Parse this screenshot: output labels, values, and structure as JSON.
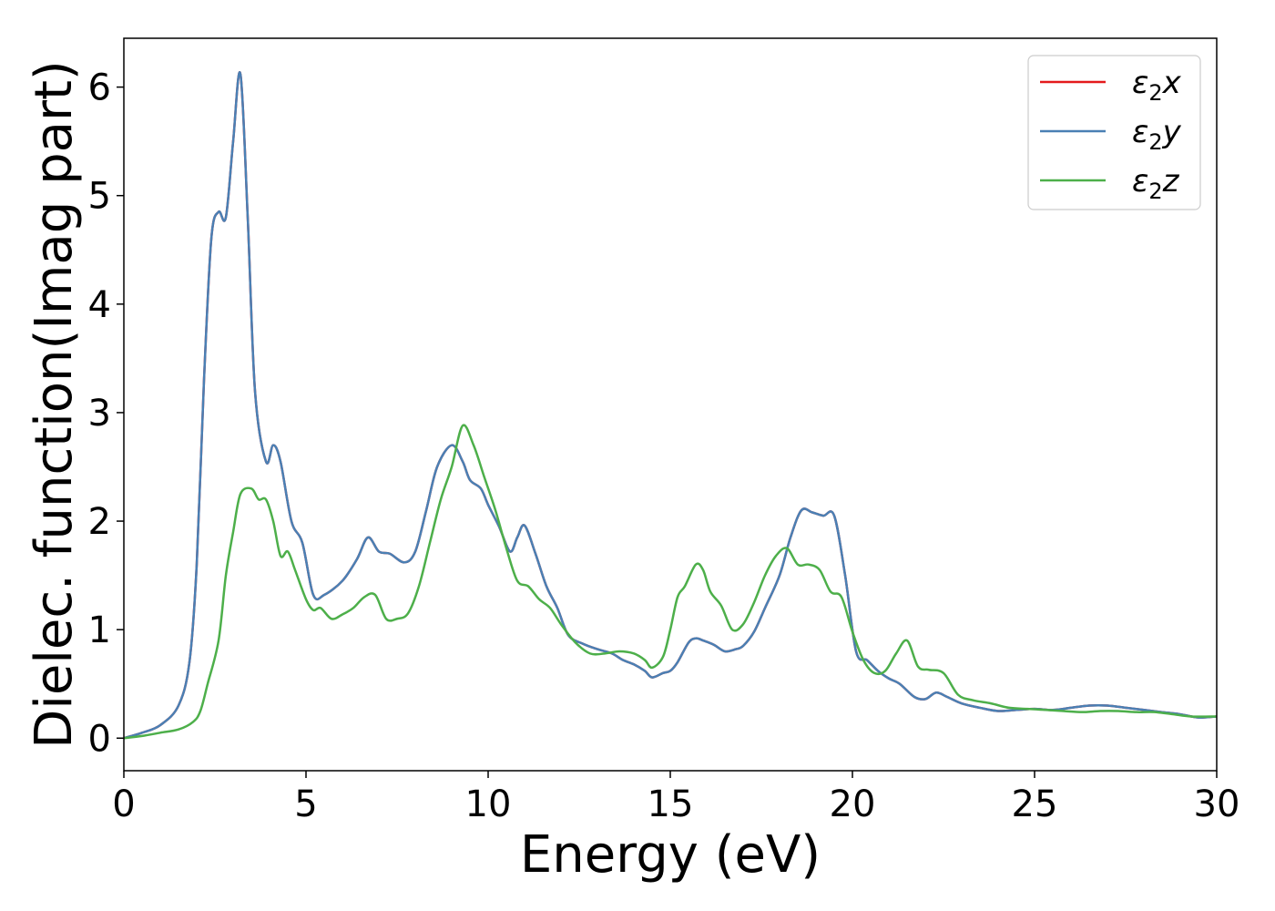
{
  "chart_data": {
    "type": "line",
    "title": "",
    "xlabel": "Energy (eV)",
    "ylabel": "Dielec. function(Imag part)",
    "xlim": [
      0,
      30
    ],
    "ylim": [
      -0.3,
      6.45
    ],
    "xticks": [
      0,
      5,
      10,
      15,
      20,
      25,
      30
    ],
    "yticks": [
      0,
      1,
      2,
      3,
      4,
      5,
      6
    ],
    "grid": false,
    "legend_position": "top-right",
    "series": [
      {
        "name": "ε₂x",
        "legend_base": "ε",
        "legend_sub": "2",
        "legend_var": "x",
        "color": "#e41a1c",
        "x": [
          0,
          0.5,
          1,
          1.5,
          1.8,
          2,
          2.2,
          2.4,
          2.6,
          2.8,
          3,
          3.2,
          3.4,
          3.6,
          3.9,
          4.1,
          4.3,
          4.6,
          4.9,
          5.2,
          5.5,
          6,
          6.4,
          6.7,
          7,
          7.3,
          7.7,
          8,
          8.3,
          8.6,
          9,
          9.3,
          9.5,
          9.8,
          10,
          10.3,
          10.6,
          10.8,
          11,
          11.3,
          11.6,
          11.9,
          12.2,
          12.6,
          13,
          13.4,
          13.7,
          14,
          14.3,
          14.5,
          14.8,
          15,
          15.2,
          15.5,
          15.7,
          15.9,
          16.2,
          16.5,
          16.8,
          17,
          17.3,
          17.6,
          18,
          18.3,
          18.6,
          18.9,
          19.2,
          19.5,
          19.8,
          20.1,
          20.4,
          20.7,
          21,
          21.3,
          21.7,
          22,
          22.3,
          22.6,
          23,
          23.5,
          24,
          24.5,
          25,
          25.5,
          26,
          26.5,
          27,
          27.5,
          28,
          28.5,
          29,
          29.5,
          30
        ],
        "y": [
          0,
          0.05,
          0.12,
          0.3,
          0.7,
          1.6,
          3.3,
          4.6,
          4.85,
          4.8,
          5.5,
          6.12,
          4.8,
          3.2,
          2.55,
          2.7,
          2.55,
          2.0,
          1.8,
          1.32,
          1.32,
          1.45,
          1.65,
          1.85,
          1.72,
          1.7,
          1.62,
          1.72,
          2.1,
          2.5,
          2.7,
          2.55,
          2.38,
          2.3,
          2.15,
          1.95,
          1.72,
          1.85,
          1.96,
          1.7,
          1.4,
          1.2,
          0.95,
          0.87,
          0.82,
          0.78,
          0.72,
          0.68,
          0.62,
          0.56,
          0.6,
          0.62,
          0.7,
          0.88,
          0.92,
          0.9,
          0.86,
          0.8,
          0.82,
          0.85,
          0.98,
          1.2,
          1.5,
          1.85,
          2.1,
          2.08,
          2.05,
          2.05,
          1.5,
          0.8,
          0.72,
          0.62,
          0.55,
          0.5,
          0.38,
          0.36,
          0.42,
          0.38,
          0.32,
          0.28,
          0.25,
          0.26,
          0.27,
          0.26,
          0.28,
          0.3,
          0.3,
          0.28,
          0.26,
          0.24,
          0.22,
          0.19,
          0.2
        ]
      },
      {
        "name": "ε₂y",
        "legend_base": "ε",
        "legend_sub": "2",
        "legend_var": "y",
        "color": "#4a80b4",
        "x": [
          0,
          0.5,
          1,
          1.5,
          1.8,
          2,
          2.2,
          2.4,
          2.6,
          2.8,
          3,
          3.2,
          3.4,
          3.6,
          3.9,
          4.1,
          4.3,
          4.6,
          4.9,
          5.2,
          5.5,
          6,
          6.4,
          6.7,
          7,
          7.3,
          7.7,
          8,
          8.3,
          8.6,
          9,
          9.3,
          9.5,
          9.8,
          10,
          10.3,
          10.6,
          10.8,
          11,
          11.3,
          11.6,
          11.9,
          12.2,
          12.6,
          13,
          13.4,
          13.7,
          14,
          14.3,
          14.5,
          14.8,
          15,
          15.2,
          15.5,
          15.7,
          15.9,
          16.2,
          16.5,
          16.8,
          17,
          17.3,
          17.6,
          18,
          18.3,
          18.6,
          18.9,
          19.2,
          19.5,
          19.8,
          20.1,
          20.4,
          20.7,
          21,
          21.3,
          21.7,
          22,
          22.3,
          22.6,
          23,
          23.5,
          24,
          24.5,
          25,
          25.5,
          26,
          26.5,
          27,
          27.5,
          28,
          28.5,
          29,
          29.5,
          30
        ],
        "y": [
          0,
          0.05,
          0.12,
          0.3,
          0.7,
          1.6,
          3.3,
          4.6,
          4.85,
          4.8,
          5.5,
          6.12,
          4.8,
          3.2,
          2.55,
          2.7,
          2.55,
          2.0,
          1.8,
          1.32,
          1.32,
          1.45,
          1.65,
          1.85,
          1.72,
          1.7,
          1.62,
          1.72,
          2.1,
          2.5,
          2.7,
          2.55,
          2.38,
          2.3,
          2.15,
          1.95,
          1.72,
          1.85,
          1.96,
          1.7,
          1.4,
          1.2,
          0.95,
          0.87,
          0.82,
          0.78,
          0.72,
          0.68,
          0.62,
          0.56,
          0.6,
          0.62,
          0.7,
          0.88,
          0.92,
          0.9,
          0.86,
          0.8,
          0.82,
          0.85,
          0.98,
          1.2,
          1.5,
          1.85,
          2.1,
          2.08,
          2.05,
          2.05,
          1.5,
          0.8,
          0.72,
          0.62,
          0.55,
          0.5,
          0.38,
          0.36,
          0.42,
          0.38,
          0.32,
          0.28,
          0.25,
          0.26,
          0.27,
          0.26,
          0.28,
          0.3,
          0.3,
          0.28,
          0.26,
          0.24,
          0.22,
          0.19,
          0.2
        ]
      },
      {
        "name": "ε₂z",
        "legend_base": "ε",
        "legend_sub": "2",
        "legend_var": "z",
        "color": "#4daf4a",
        "x": [
          0,
          0.5,
          1,
          1.5,
          1.9,
          2.1,
          2.3,
          2.6,
          2.8,
          3,
          3.2,
          3.5,
          3.7,
          3.9,
          4.1,
          4.3,
          4.5,
          4.7,
          5,
          5.2,
          5.4,
          5.7,
          6,
          6.3,
          6.6,
          6.9,
          7.2,
          7.5,
          7.8,
          8.1,
          8.4,
          8.7,
          9,
          9.3,
          9.6,
          9.9,
          10.2,
          10.5,
          10.8,
          11.1,
          11.4,
          11.7,
          12,
          12.4,
          12.8,
          13.2,
          13.6,
          14,
          14.3,
          14.5,
          14.8,
          15,
          15.2,
          15.4,
          15.7,
          15.9,
          16.1,
          16.4,
          16.7,
          17,
          17.3,
          17.6,
          17.9,
          18.2,
          18.5,
          18.8,
          19.1,
          19.4,
          19.7,
          20,
          20.3,
          20.6,
          20.9,
          21.2,
          21.5,
          21.8,
          22.1,
          22.5,
          22.9,
          23.3,
          23.8,
          24.3,
          24.8,
          25.3,
          25.8,
          26.3,
          26.8,
          27.3,
          27.8,
          28.3,
          28.8,
          29.3,
          30
        ],
        "y": [
          0,
          0.02,
          0.05,
          0.08,
          0.15,
          0.25,
          0.5,
          0.9,
          1.5,
          1.9,
          2.25,
          2.3,
          2.2,
          2.2,
          2.0,
          1.68,
          1.72,
          1.55,
          1.28,
          1.18,
          1.2,
          1.1,
          1.14,
          1.2,
          1.3,
          1.32,
          1.1,
          1.1,
          1.15,
          1.4,
          1.8,
          2.2,
          2.5,
          2.88,
          2.7,
          2.4,
          2.1,
          1.75,
          1.45,
          1.4,
          1.28,
          1.2,
          1.05,
          0.88,
          0.78,
          0.78,
          0.8,
          0.78,
          0.72,
          0.65,
          0.75,
          1.0,
          1.3,
          1.4,
          1.6,
          1.55,
          1.35,
          1.22,
          1.0,
          1.05,
          1.25,
          1.5,
          1.68,
          1.75,
          1.6,
          1.6,
          1.55,
          1.35,
          1.3,
          0.98,
          0.72,
          0.6,
          0.62,
          0.78,
          0.9,
          0.66,
          0.63,
          0.6,
          0.4,
          0.35,
          0.32,
          0.28,
          0.27,
          0.26,
          0.25,
          0.24,
          0.25,
          0.25,
          0.24,
          0.24,
          0.22,
          0.2,
          0.2
        ]
      }
    ]
  }
}
